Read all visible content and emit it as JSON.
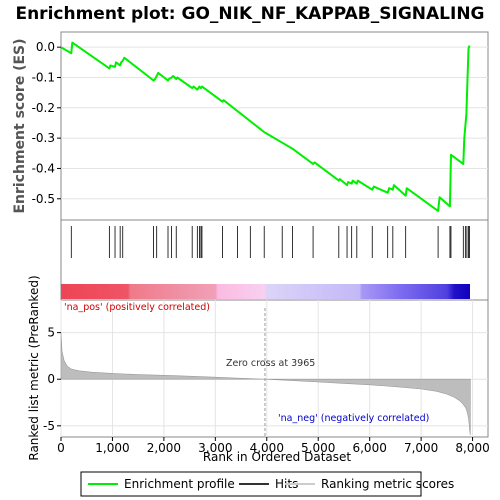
{
  "chart_data": {
    "type": "line",
    "title": "Enrichment plot: GO_NIK_NF_KAPPAB_SIGNALING",
    "top_panel": {
      "ylabel": "Enrichment score (ES)",
      "ylim": [
        -0.57,
        0.05
      ],
      "yticks": [
        0.0,
        -0.1,
        -0.2,
        -0.3,
        -0.4,
        -0.5
      ],
      "series": [
        {
          "name": "Enrichment profile",
          "color": "#00ee00",
          "x": [
            0,
            200,
            220,
            940,
            960,
            1050,
            1070,
            1150,
            1170,
            1200,
            1230,
            1800,
            1830,
            1860,
            1890,
            2080,
            2100,
            2150,
            2180,
            2240,
            2260,
            2550,
            2580,
            2650,
            2670,
            2690,
            2720,
            2740,
            3140,
            3160,
            3950,
            4350,
            4500,
            4900,
            4930,
            5400,
            5420,
            5560,
            5580,
            5650,
            5670,
            5750,
            5770,
            6050,
            6080,
            6350,
            6380,
            6450,
            6470,
            6700,
            6720,
            7330,
            7360,
            7560,
            7580,
            7820,
            7840,
            7880,
            7900,
            7920,
            7940
          ],
          "y": [
            0.0,
            -0.02,
            0.015,
            -0.07,
            -0.06,
            -0.065,
            -0.05,
            -0.06,
            -0.05,
            -0.045,
            -0.035,
            -0.11,
            -0.105,
            -0.095,
            -0.085,
            -0.11,
            -0.105,
            -0.1,
            -0.095,
            -0.105,
            -0.1,
            -0.135,
            -0.13,
            -0.14,
            -0.135,
            -0.13,
            -0.135,
            -0.13,
            -0.18,
            -0.175,
            -0.28,
            -0.32,
            -0.335,
            -0.385,
            -0.38,
            -0.44,
            -0.435,
            -0.455,
            -0.445,
            -0.45,
            -0.44,
            -0.45,
            -0.44,
            -0.47,
            -0.46,
            -0.48,
            -0.465,
            -0.47,
            -0.455,
            -0.49,
            -0.465,
            -0.54,
            -0.495,
            -0.525,
            -0.355,
            -0.385,
            -0.3,
            -0.22,
            -0.115,
            -0.005,
            0.005
          ]
        }
      ]
    },
    "hits_panel": {
      "series_name": "Hits",
      "hit_ranks": [
        200,
        940,
        1050,
        1150,
        1200,
        1800,
        1860,
        2080,
        2150,
        2240,
        2550,
        2650,
        2690,
        2720,
        2740,
        3140,
        3430,
        3680,
        3950,
        4300,
        4500,
        4900,
        5400,
        5560,
        5650,
        5750,
        6050,
        6350,
        6450,
        6700,
        7330,
        7560,
        7580,
        7820,
        7860,
        7890,
        7920,
        7940
      ],
      "gradient_stops": [
        {
          "rank": 0,
          "color": "#ee4455"
        },
        {
          "rank": 1300,
          "color": "#ee5566"
        },
        {
          "rank": 1350,
          "color": "#f07a88"
        },
        {
          "rank": 3000,
          "color": "#f0a0b8"
        },
        {
          "rank": 3050,
          "color": "#fbbbe0"
        },
        {
          "rank": 3950,
          "color": "#f8d0f0"
        },
        {
          "rank": 4000,
          "color": "#dcd4f8"
        },
        {
          "rank": 5800,
          "color": "#c4b8f8"
        },
        {
          "rank": 5850,
          "color": "#a898f4"
        },
        {
          "rank": 6600,
          "color": "#7d6cf0"
        },
        {
          "rank": 7500,
          "color": "#5040e0"
        },
        {
          "rank": 7650,
          "color": "#2010c8"
        },
        {
          "rank": 7950,
          "color": "#1000bb"
        }
      ]
    },
    "bottom_panel": {
      "xlabel": "Rank in Ordered Dataset",
      "ylabel": "Ranked list metric (PreRanked)",
      "xlim": [
        0,
        8300
      ],
      "ylim": [
        -6.2,
        8.5
      ],
      "xticks": [
        0,
        1000,
        2000,
        3000,
        4000,
        5000,
        6000,
        7000,
        8000
      ],
      "yticks": [
        -5,
        0,
        5
      ],
      "zero_cross": 3965,
      "metric_curve": {
        "x": [
          0,
          20,
          60,
          120,
          200,
          350,
          600,
          1000,
          1500,
          2000,
          2500,
          3000,
          3500,
          3965,
          4500,
          5000,
          5500,
          6000,
          6500,
          7000,
          7300,
          7500,
          7650,
          7750,
          7820,
          7870,
          7900,
          7920,
          7935,
          7945,
          7955
        ],
        "y": [
          5.0,
          3.0,
          2.0,
          1.4,
          1.1,
          0.9,
          0.75,
          0.62,
          0.5,
          0.42,
          0.32,
          0.22,
          0.1,
          0.0,
          -0.15,
          -0.3,
          -0.45,
          -0.6,
          -0.8,
          -1.05,
          -1.3,
          -1.6,
          -1.95,
          -2.3,
          -2.7,
          -3.1,
          -3.6,
          -4.2,
          -4.9,
          -5.5,
          -6.0
        ]
      },
      "annotations": {
        "pos_label": "'na_pos' (positively correlated)",
        "neg_label": "'na_neg' (negatively correlated)",
        "zero_label": "Zero cross at 3965",
        "pos_color": "#cc0000",
        "neg_color": "#0000cc"
      }
    },
    "legend": {
      "items": [
        {
          "name": "Enrichment profile",
          "color": "#00ee00"
        },
        {
          "name": "Hits",
          "color": "#333333"
        },
        {
          "name": "Ranking metric scores",
          "color": "#cccccc"
        }
      ]
    }
  }
}
